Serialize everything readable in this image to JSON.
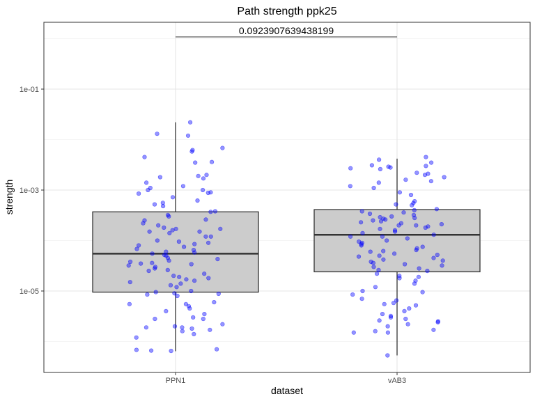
{
  "chart_data": {
    "type": "boxplot",
    "title": "Path strength ppk25",
    "xlabel": "dataset",
    "ylabel": "strength",
    "y_scale": "log10",
    "ylim": [
      2.8e-07,
      1.0
    ],
    "y_ticks": [
      {
        "value": 0.1,
        "label": "1e-01"
      },
      {
        "value": 0.001,
        "label": "1e-03"
      },
      {
        "value": 1e-05,
        "label": "1e-05"
      }
    ],
    "categories": [
      "PPN1",
      "vAB3"
    ],
    "grid": true,
    "colors": {
      "box_fill": "#cccccc",
      "box_line": "#333333",
      "points": "#0000ff",
      "panel_border": "#333333",
      "grid_major": "#e5e5e5",
      "grid_minor": "#f2f2f2"
    },
    "boxes": [
      {
        "category": "PPN1",
        "whisker_low": 6.4e-07,
        "q1": 9.5e-06,
        "median": 5.5e-05,
        "q3": 0.00037,
        "whisker_high": 0.022
      },
      {
        "category": "vAB3",
        "whisker_low": 5.3e-07,
        "q1": 2.4e-05,
        "median": 0.00013,
        "q3": 0.00041,
        "whisker_high": 0.0042
      }
    ],
    "points": [
      {
        "category": "PPN1",
        "values": [
          0.022,
          0.013,
          0.012,
          0.0068,
          0.0062,
          0.0058,
          0.0045,
          0.0036,
          0.0035,
          0.002,
          0.0019,
          0.0018,
          0.0017,
          0.0014,
          0.0012,
          0.0011,
          0.001,
          0.001,
          0.0009,
          0.00088,
          0.00085,
          0.00072,
          0.00062,
          0.00056,
          0.00052,
          0.00048,
          0.00038,
          0.00037,
          0.00032,
          0.0003,
          0.00026,
          0.00025,
          0.00022,
          0.0002,
          0.00018,
          0.00017,
          0.00017,
          0.00016,
          0.00015,
          0.00015,
          0.00014,
          0.00012,
          0.00012,
          0.0001,
          9.5e-05,
          9e-05,
          8.5e-05,
          8e-05,
          7.5e-05,
          6.8e-05,
          6.5e-05,
          6e-05,
          5.8e-05,
          5.5e-05,
          5.2e-05,
          5e-05,
          4.5e-05,
          4.3e-05,
          4e-05,
          3.8e-05,
          3.6e-05,
          3.5e-05,
          3.4e-05,
          3.2e-05,
          3e-05,
          2.8e-05,
          2.6e-05,
          2.5e-05,
          2.2e-05,
          2e-05,
          1.9e-05,
          1.8e-05,
          1.7e-05,
          1.6e-05,
          1.5e-05,
          1.4e-05,
          1.3e-05,
          1.2e-05,
          1e-05,
          9.5e-06,
          9e-06,
          8.8e-06,
          8.5e-06,
          8e-06,
          6e-06,
          5.5e-06,
          5.5e-06,
          5e-06,
          4.5e-06,
          4e-06,
          3.5e-06,
          3e-06,
          2.8e-06,
          2.8e-06,
          2.2e-06,
          2e-06,
          1.9e-06,
          1.9e-06,
          1.8e-06,
          1.7e-06,
          1.6e-06,
          1.4e-06,
          1.2e-06,
          7e-07,
          6.8e-07,
          6.6e-07,
          6.5e-07
        ]
      },
      {
        "category": "vAB3",
        "values": [
          0.0045,
          0.004,
          0.0035,
          0.0031,
          0.003,
          0.0029,
          0.0028,
          0.0027,
          0.0026,
          0.0022,
          0.0021,
          0.002,
          0.0018,
          0.0016,
          0.0015,
          0.0014,
          0.0012,
          0.0011,
          0.0009,
          0.0008,
          0.0006,
          0.00055,
          0.00052,
          0.0005,
          0.00042,
          0.0004,
          0.00038,
          0.00036,
          0.00034,
          0.00032,
          0.0003,
          0.00029,
          0.00028,
          0.00027,
          0.00026,
          0.00025,
          0.00024,
          0.00023,
          0.00022,
          0.00021,
          0.0002,
          0.0002,
          0.00019,
          0.00018,
          0.00017,
          0.00016,
          0.00015,
          0.00014,
          0.00013,
          0.00012,
          0.00012,
          0.00011,
          0.0001,
          9.5e-05,
          9e-05,
          8.5e-05,
          8e-05,
          7.5e-05,
          7e-05,
          6.5e-05,
          6.2e-05,
          6e-05,
          5.5e-05,
          5.2e-05,
          5e-05,
          4.8e-05,
          4.5e-05,
          4.2e-05,
          4e-05,
          3.8e-05,
          3.6e-05,
          3.4e-05,
          3.2e-05,
          3e-05,
          2.8e-05,
          2.6e-05,
          2.5e-05,
          2.2e-05,
          2e-05,
          1.9e-05,
          1.8e-05,
          1.6e-05,
          1.4e-05,
          1.2e-05,
          1e-05,
          9.5e-06,
          8.5e-06,
          7e-06,
          6.5e-06,
          5.8e-06,
          5.5e-06,
          5.2e-06,
          4.5e-06,
          4e-06,
          3.5e-06,
          3.2e-06,
          3e-06,
          2.8e-06,
          2.6e-06,
          2.5e-06,
          2.4e-06,
          2.2e-06,
          2e-06,
          1.7e-06,
          1.6e-06,
          1.5e-06,
          1.5e-06,
          5.3e-07
        ]
      }
    ],
    "annotations": [
      {
        "text": "0.0923907639438199",
        "from": "PPN1",
        "to": "vAB3"
      }
    ]
  }
}
